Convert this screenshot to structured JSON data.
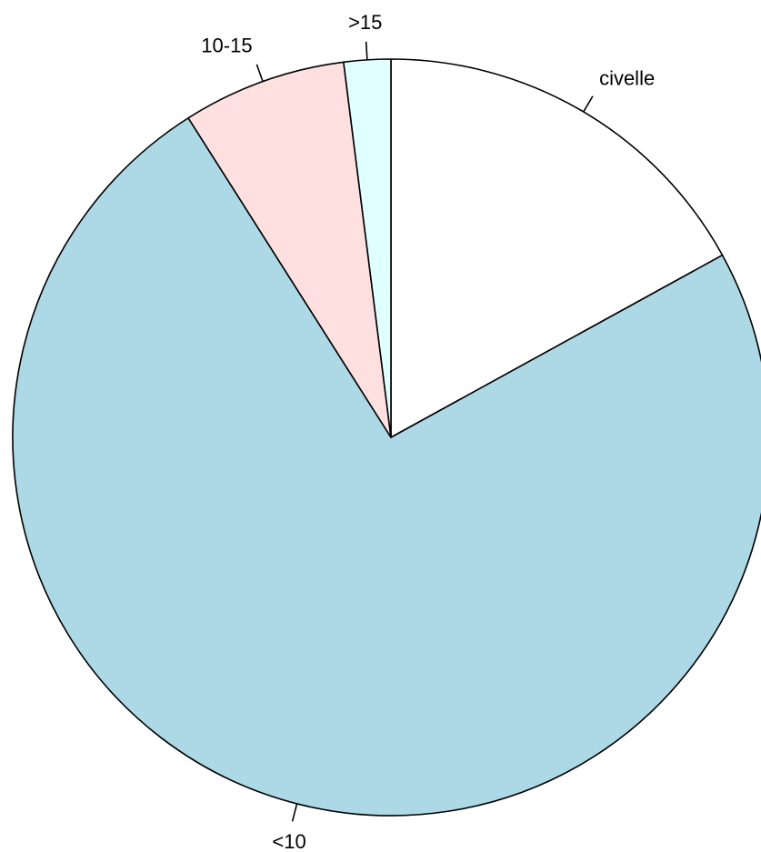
{
  "chart_data": {
    "type": "pie",
    "title": "",
    "direction": "clockwise",
    "start_angle_deg": 90,
    "slices": [
      {
        "label": "civelle",
        "value": 17,
        "color": "#ffffff"
      },
      {
        "label": "<10",
        "value": 74,
        "color": "#add8e6"
      },
      {
        "label": "10-15",
        "value": 7,
        "color": "#ffe0e0"
      },
      {
        "label": ">15",
        "value": 2,
        "color": "#e0ffff"
      }
    ]
  }
}
